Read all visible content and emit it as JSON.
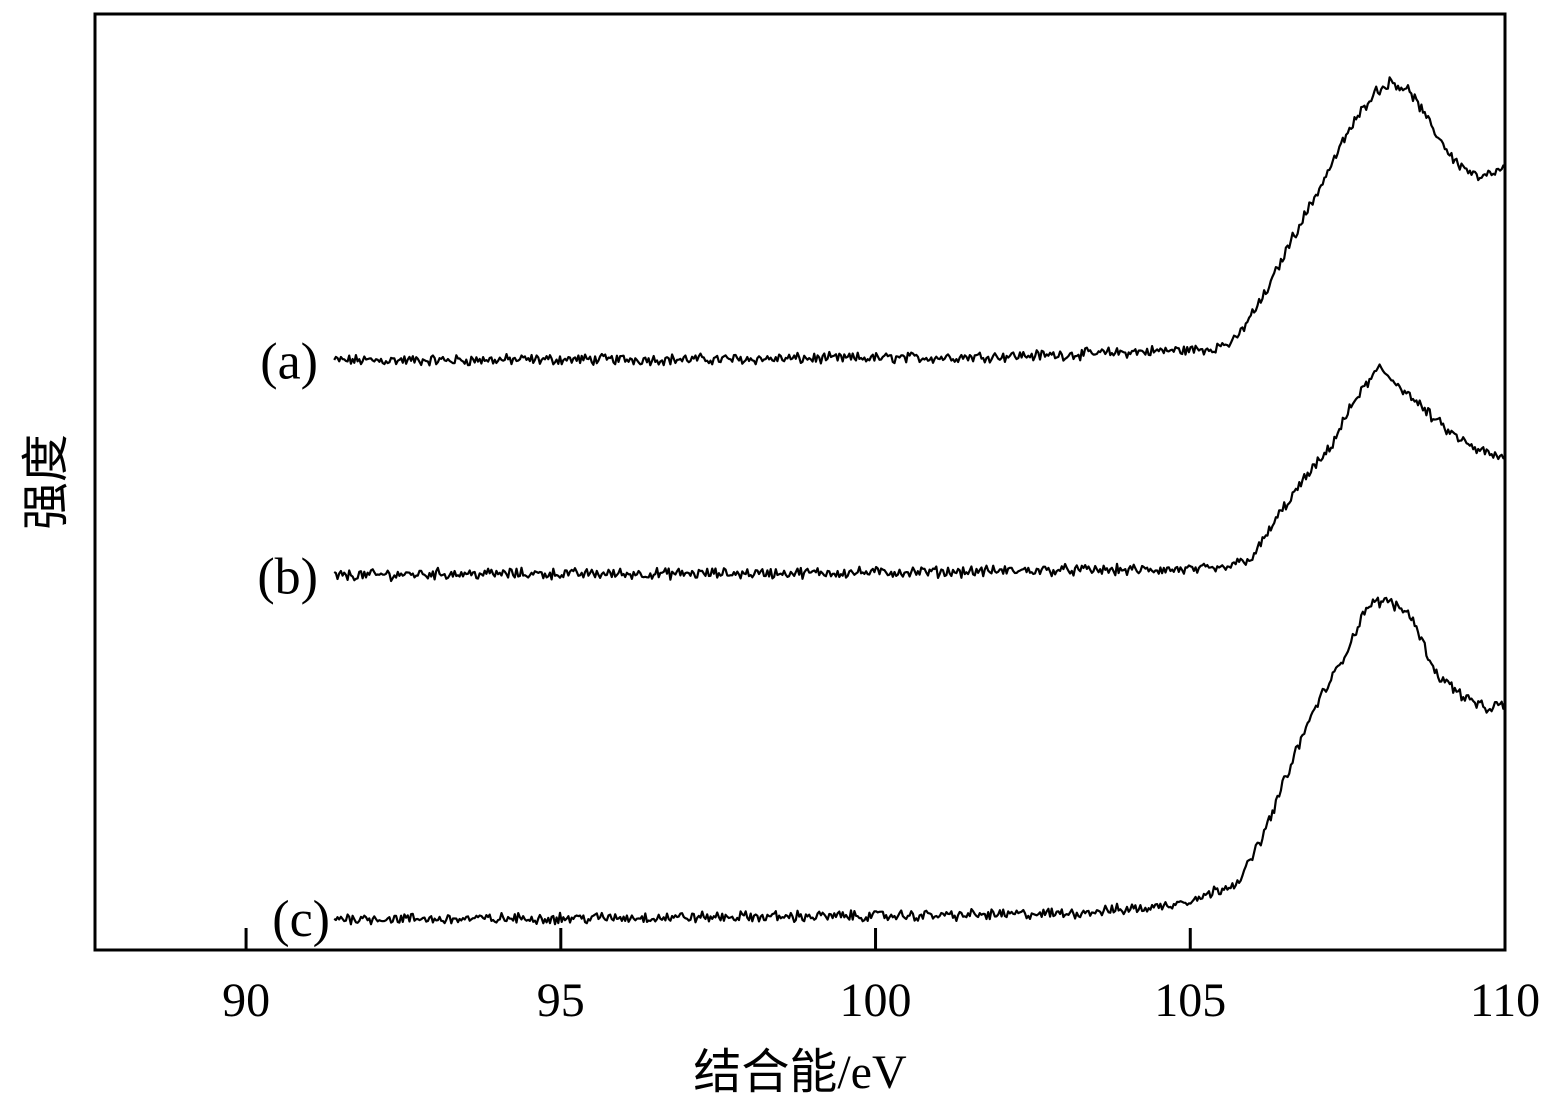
{
  "chart_data": {
    "type": "line",
    "title": "",
    "xlabel": "结合能/eV",
    "ylabel": "强度",
    "xlim": [
      87.6,
      110
    ],
    "ylim": [
      0,
      100
    ],
    "x_ticks": [
      90,
      95,
      100,
      105,
      110
    ],
    "x_tick_labels": [
      "90",
      "95",
      "100",
      "105",
      "110"
    ],
    "grid": false,
    "legend": "none",
    "line_color": "#000000",
    "series": [
      {
        "label": "(a)",
        "x": [
          91.4,
          93,
          95,
          97,
          99,
          101,
          103,
          104.5,
          105.3,
          105.7,
          106.2,
          106.6,
          107.0,
          107.5,
          107.9,
          108.2,
          108.5,
          108.8,
          109.2,
          109.6,
          110.0
        ],
        "y": [
          63.0,
          63.0,
          63.1,
          63.1,
          63.2,
          63.3,
          63.6,
          64.0,
          64.2,
          65.0,
          70.2,
          75.8,
          80.7,
          87.3,
          91.5,
          92.8,
          91.7,
          88.3,
          84.3,
          82.4,
          83.5
        ]
      },
      {
        "label": "(b)",
        "x": [
          91.4,
          93,
          95,
          97,
          99,
          101,
          103,
          104.5,
          105.5,
          106.0,
          106.4,
          106.8,
          107.2,
          107.6,
          108.0,
          108.4,
          108.7,
          109.1,
          109.5,
          110.0
        ],
        "y": [
          40.0,
          40.2,
          40.2,
          40.2,
          40.3,
          40.4,
          40.6,
          40.6,
          40.7,
          42.0,
          46.4,
          50.2,
          53.4,
          58.6,
          62.2,
          59.8,
          57.8,
          55.4,
          53.6,
          52.4
        ]
      },
      {
        "label": "(c)",
        "x": [
          91.4,
          93,
          95,
          97,
          99,
          101,
          103,
          104.5,
          105.2,
          105.8,
          106.2,
          106.6,
          107.0,
          107.4,
          107.8,
          108.1,
          108.5,
          108.9,
          109.3,
          109.7,
          110.0
        ],
        "y": [
          3.4,
          3.3,
          3.4,
          3.5,
          3.6,
          3.7,
          3.9,
          4.6,
          5.7,
          7.5,
          12.9,
          19.9,
          26.2,
          30.7,
          36.7,
          37.4,
          35.9,
          29.6,
          27.3,
          25.7,
          26.3
        ]
      }
    ]
  }
}
